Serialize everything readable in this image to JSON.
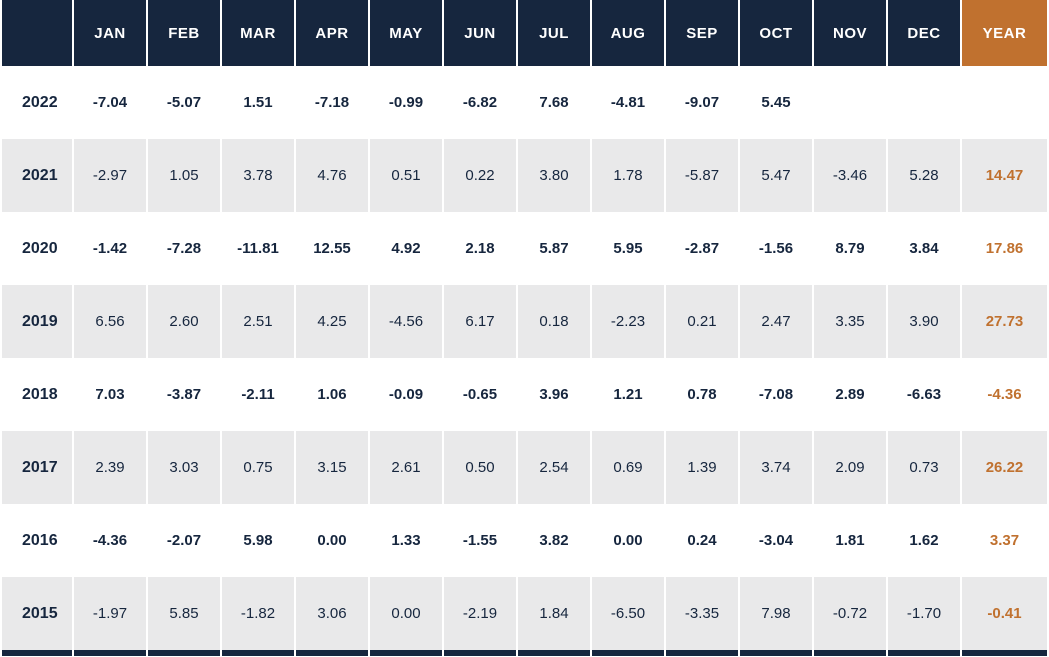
{
  "colors": {
    "header_bg": "#16263e",
    "accent_orange": "#c0712f",
    "row_alt_bg": "#e9e9ea",
    "text_navy": "#16263e"
  },
  "table": {
    "columns": [
      "",
      "JAN",
      "FEB",
      "MAR",
      "APR",
      "MAY",
      "JUN",
      "JUL",
      "AUG",
      "SEP",
      "OCT",
      "NOV",
      "DEC",
      "YEAR"
    ],
    "rows": [
      {
        "label": "2022",
        "cells": [
          "-7.04",
          "-5.07",
          "1.51",
          "-7.18",
          "-0.99",
          "-6.82",
          "7.68",
          "-4.81",
          "-9.07",
          "5.45",
          "",
          ""
        ],
        "total": ""
      },
      {
        "label": "2021",
        "cells": [
          "-2.97",
          "1.05",
          "3.78",
          "4.76",
          "0.51",
          "0.22",
          "3.80",
          "1.78",
          "-5.87",
          "5.47",
          "-3.46",
          "5.28"
        ],
        "total": "14.47"
      },
      {
        "label": "2020",
        "cells": [
          "-1.42",
          "-7.28",
          "-11.81",
          "12.55",
          "4.92",
          "2.18",
          "5.87",
          "5.95",
          "-2.87",
          "-1.56",
          "8.79",
          "3.84"
        ],
        "total": "17.86"
      },
      {
        "label": "2019",
        "cells": [
          "6.56",
          "2.60",
          "2.51",
          "4.25",
          "-4.56",
          "6.17",
          "0.18",
          "-2.23",
          "0.21",
          "2.47",
          "3.35",
          "3.90"
        ],
        "total": "27.73"
      },
      {
        "label": "2018",
        "cells": [
          "7.03",
          "-3.87",
          "-2.11",
          "1.06",
          "-0.09",
          "-0.65",
          "3.96",
          "1.21",
          "0.78",
          "-7.08",
          "2.89",
          "-6.63"
        ],
        "total": "-4.36"
      },
      {
        "label": "2017",
        "cells": [
          "2.39",
          "3.03",
          "0.75",
          "3.15",
          "2.61",
          "0.50",
          "2.54",
          "0.69",
          "1.39",
          "3.74",
          "2.09",
          "0.73"
        ],
        "total": "26.22"
      },
      {
        "label": "2016",
        "cells": [
          "-4.36",
          "-2.07",
          "5.98",
          "0.00",
          "1.33",
          "-1.55",
          "3.82",
          "0.00",
          "0.24",
          "-3.04",
          "1.81",
          "1.62"
        ],
        "total": "3.37"
      },
      {
        "label": "2015",
        "cells": [
          "-1.97",
          "5.85",
          "-1.82",
          "3.06",
          "0.00",
          "-2.19",
          "1.84",
          "-6.50",
          "-3.35",
          "7.98",
          "-0.72",
          "-1.70"
        ],
        "total": "-0.41"
      }
    ]
  },
  "chart_data": {
    "type": "table",
    "columns": [
      "JAN",
      "FEB",
      "MAR",
      "APR",
      "MAY",
      "JUN",
      "JUL",
      "AUG",
      "SEP",
      "OCT",
      "NOV",
      "DEC",
      "YEAR"
    ],
    "rows": [
      {
        "label": "2022",
        "values": [
          -7.04,
          -5.07,
          1.51,
          -7.18,
          -0.99,
          -6.82,
          7.68,
          -4.81,
          -9.07,
          5.45,
          null,
          null,
          null
        ]
      },
      {
        "label": "2021",
        "values": [
          -2.97,
          1.05,
          3.78,
          4.76,
          0.51,
          0.22,
          3.8,
          1.78,
          -5.87,
          5.47,
          -3.46,
          5.28,
          14.47
        ]
      },
      {
        "label": "2020",
        "values": [
          -1.42,
          -7.28,
          -11.81,
          12.55,
          4.92,
          2.18,
          5.87,
          5.95,
          -2.87,
          -1.56,
          8.79,
          3.84,
          17.86
        ]
      },
      {
        "label": "2019",
        "values": [
          6.56,
          2.6,
          2.51,
          4.25,
          -4.56,
          6.17,
          0.18,
          -2.23,
          0.21,
          2.47,
          3.35,
          3.9,
          27.73
        ]
      },
      {
        "label": "2018",
        "values": [
          7.03,
          -3.87,
          -2.11,
          1.06,
          -0.09,
          -0.65,
          3.96,
          1.21,
          0.78,
          -7.08,
          2.89,
          -6.63,
          -4.36
        ]
      },
      {
        "label": "2017",
        "values": [
          2.39,
          3.03,
          0.75,
          3.15,
          2.61,
          0.5,
          2.54,
          0.69,
          1.39,
          3.74,
          2.09,
          0.73,
          26.22
        ]
      },
      {
        "label": "2016",
        "values": [
          -4.36,
          -2.07,
          5.98,
          0.0,
          1.33,
          -1.55,
          3.82,
          0.0,
          0.24,
          -3.04,
          1.81,
          1.62,
          3.37
        ]
      },
      {
        "label": "2015",
        "values": [
          -1.97,
          5.85,
          -1.82,
          3.06,
          0.0,
          -2.19,
          1.84,
          -6.5,
          -3.35,
          7.98,
          -0.72,
          -1.7,
          -0.41
        ]
      }
    ]
  }
}
